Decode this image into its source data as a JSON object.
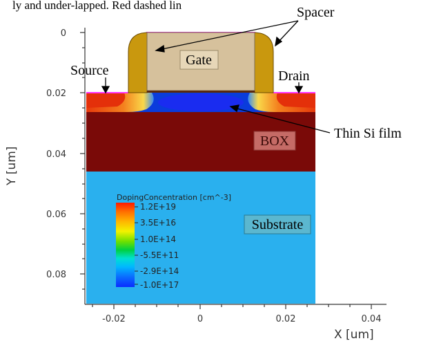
{
  "top_caption": "ly and under-lapped. Red dashed lin",
  "labels": {
    "gate": "Gate",
    "box": "BOX",
    "substrate": "Substrate",
    "spacer": "Spacer",
    "source": "Source",
    "drain": "Drain",
    "thin_film": "Thin Si film"
  },
  "axes": {
    "x_title": "X [um]",
    "y_title": "Y [um]",
    "x_ticks": [
      "-0.02",
      "0",
      "0.02",
      "0.04"
    ],
    "y_ticks": [
      "0",
      "0.02",
      "0.04",
      "0.06",
      "0.08"
    ]
  },
  "legend": {
    "title": "DopingConcentration [cm^-3]",
    "values": [
      "1.2E+19",
      "3.5E+16",
      "1.0E+14",
      "-5.5E+11",
      "-2.9E+14",
      "-1.0E+17"
    ]
  },
  "colors": {
    "gate_fill": "#d6c19c",
    "spacer_fill": "#c9980e",
    "box_fill": "#7a0a08",
    "substrate_fill": "#2ab0ee",
    "channel_fill": "#0a3cdc",
    "contact": "#ff33ff",
    "label_box": "#c56b66",
    "label_substrate": "#5bb7cf"
  }
}
